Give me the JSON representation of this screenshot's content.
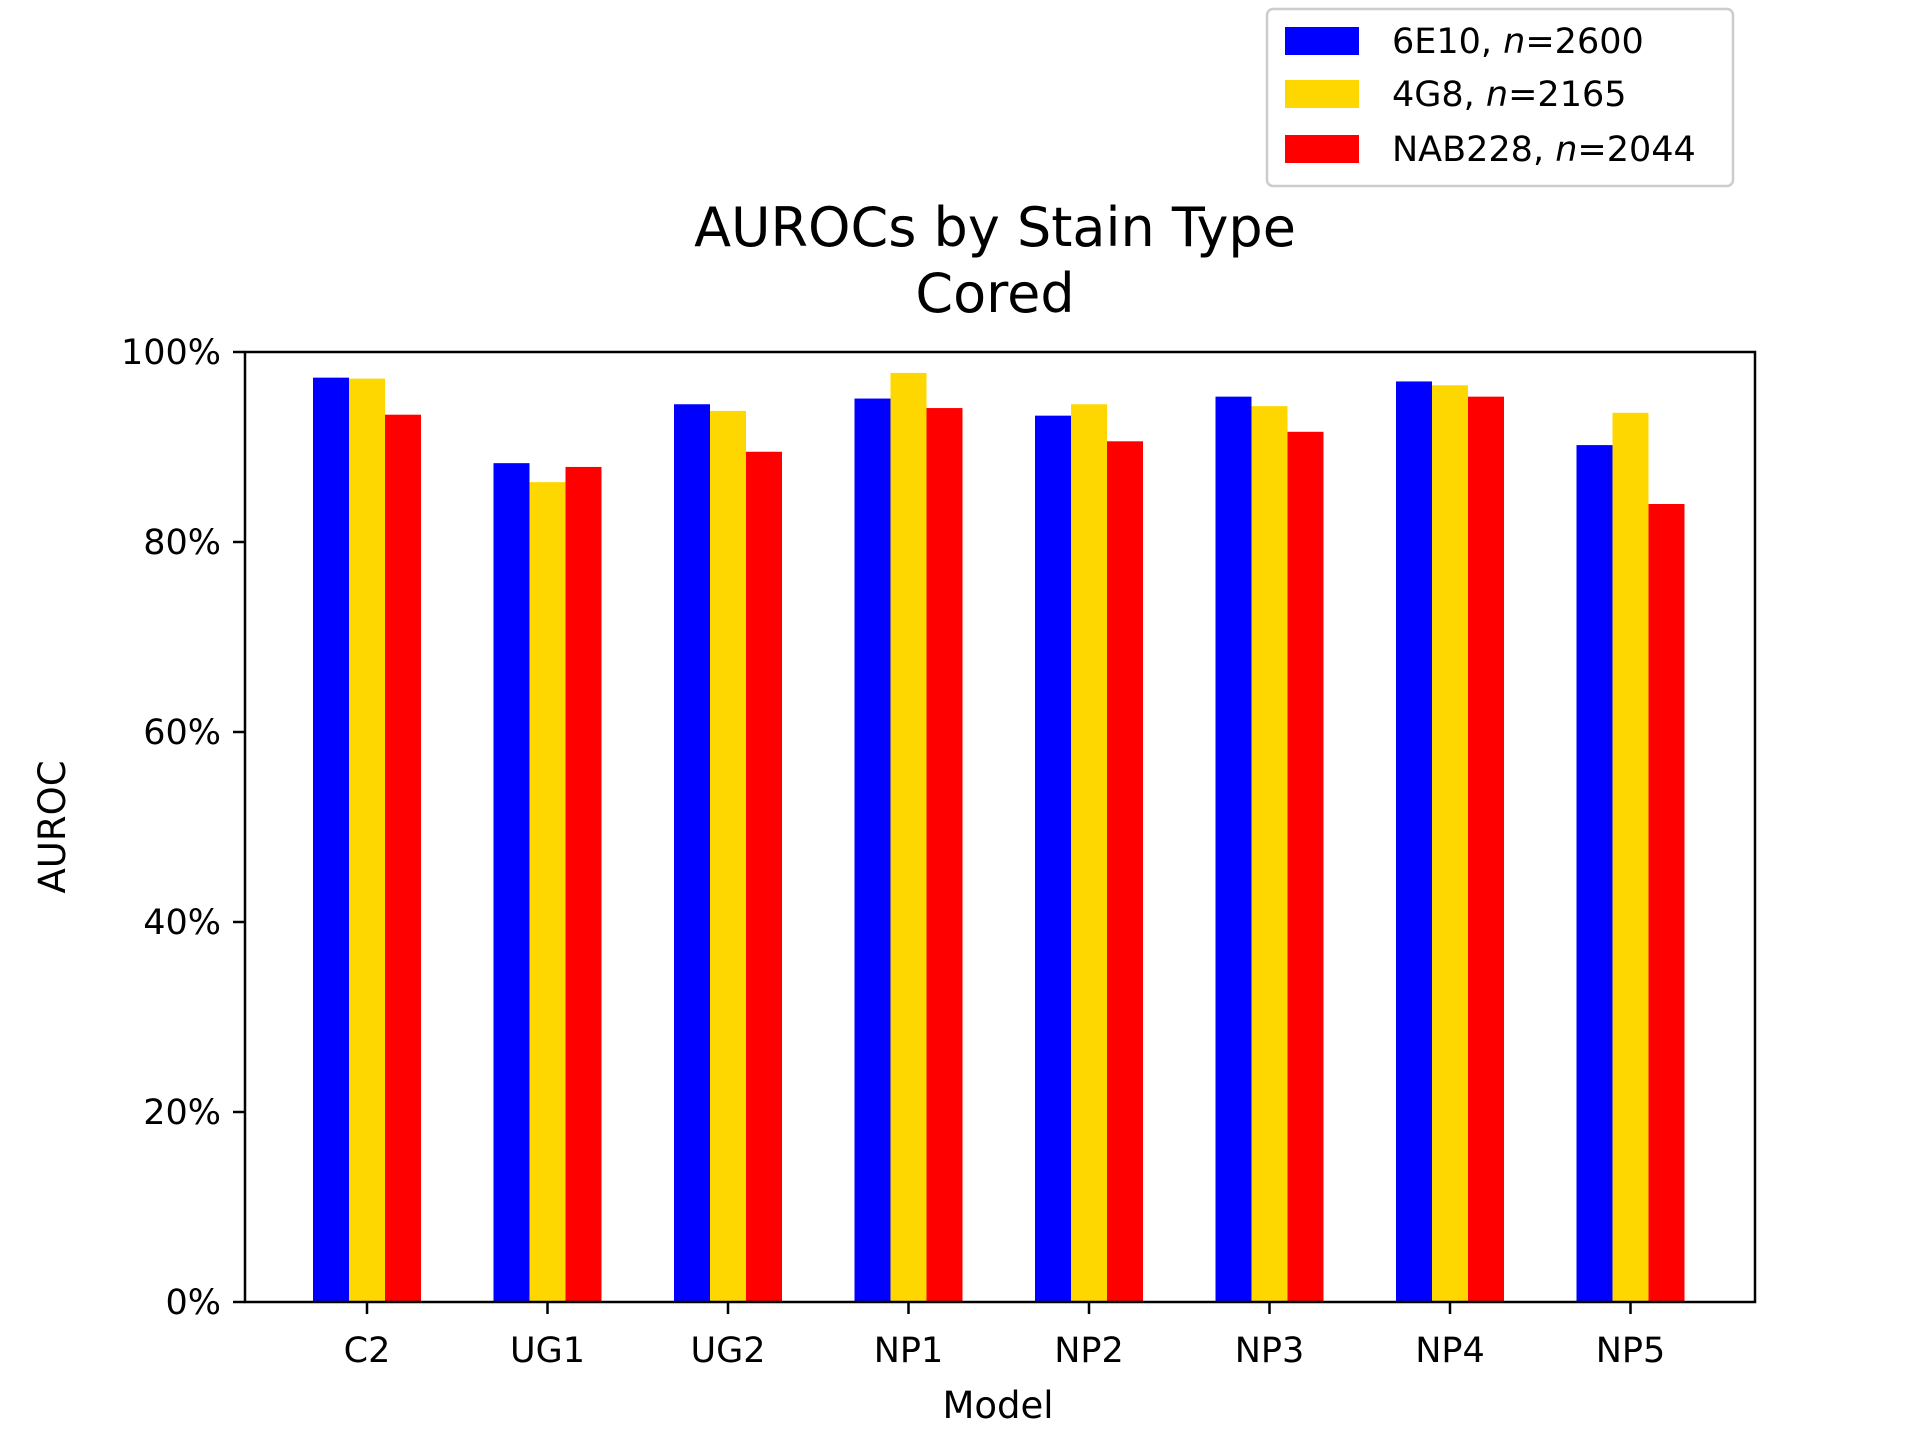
{
  "chart_data": {
    "type": "bar",
    "title": "AUROCs by Stain Type",
    "subtitle": "Cored",
    "xlabel": "Model",
    "ylabel": "AUROC",
    "ylim": [
      0,
      100
    ],
    "y_tick_values": [
      0,
      20,
      40,
      60,
      80,
      100
    ],
    "y_tick_labels": [
      "0%",
      "20%",
      "40%",
      "60%",
      "80%",
      "100%"
    ],
    "categories": [
      "C2",
      "UG1",
      "UG2",
      "NP1",
      "NP2",
      "NP3",
      "NP4",
      "NP5"
    ],
    "series": [
      {
        "name": "6E10",
        "n_label": "n",
        "n_value": "=2600",
        "color": "#0000ff",
        "values": [
          97.3,
          88.3,
          94.5,
          95.1,
          93.3,
          95.3,
          96.9,
          90.2
        ]
      },
      {
        "name": "4G8",
        "n_label": "n",
        "n_value": "=2165",
        "color": "#ffd700",
        "values": [
          97.2,
          86.3,
          93.8,
          97.8,
          94.5,
          94.3,
          96.5,
          93.6
        ]
      },
      {
        "name": "NAB228",
        "n_label": "n",
        "n_value": "=2044",
        "color": "#ff0000",
        "values": [
          93.4,
          87.9,
          89.5,
          94.1,
          90.6,
          91.6,
          95.3,
          84.0
        ]
      }
    ],
    "grid": false,
    "legend_position": "top-right"
  }
}
